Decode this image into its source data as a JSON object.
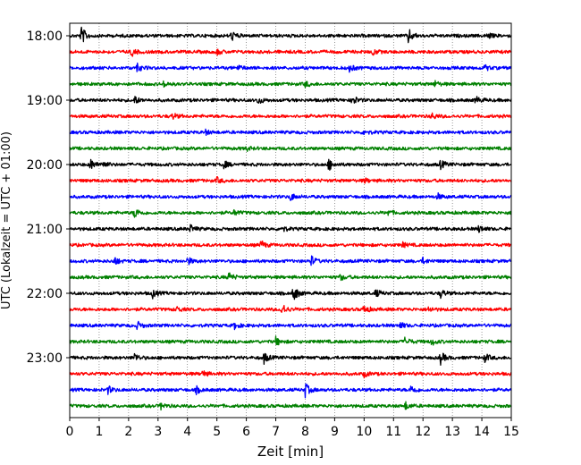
{
  "chart_data": {
    "type": "line",
    "xlabel": "Zeit  [min]",
    "ylabel": "UTC (Lokalzeit = UTC + 01:00)",
    "xlim": [
      0,
      15
    ],
    "x_ticks": [
      0,
      1,
      2,
      3,
      4,
      5,
      6,
      7,
      8,
      9,
      10,
      11,
      12,
      13,
      14,
      15
    ],
    "x_tick_labels": [
      "0",
      "1",
      "2",
      "3",
      "4",
      "5",
      "6",
      "7",
      "8",
      "9",
      "10",
      "11",
      "12",
      "13",
      "14",
      "15"
    ],
    "y_ticks": [
      "18:00",
      "19:00",
      "20:00",
      "21:00",
      "22:00",
      "23:00"
    ],
    "grid": "vertical dotted",
    "trace_interval_min": 15,
    "colors": [
      "#000000",
      "#ff0000",
      "#0000ff",
      "#008000"
    ],
    "traces": [
      {
        "start": "18:00",
        "color": "#000000",
        "events": [
          [
            0.4,
            1.0
          ],
          [
            5.5,
            0.5
          ],
          [
            11.5,
            0.8
          ],
          [
            14.2,
            0.3
          ]
        ]
      },
      {
        "start": "18:15",
        "color": "#ff0000",
        "events": [
          [
            2.1,
            0.45
          ],
          [
            5.0,
            0.3
          ],
          [
            10.3,
            0.3
          ]
        ]
      },
      {
        "start": "18:30",
        "color": "#0000ff",
        "events": [
          [
            2.3,
            0.4
          ],
          [
            5.7,
            0.3
          ],
          [
            9.5,
            0.4
          ],
          [
            14.1,
            0.3
          ]
        ]
      },
      {
        "start": "18:45",
        "color": "#008000",
        "events": [
          [
            3.2,
            0.3
          ],
          [
            8.0,
            0.3
          ],
          [
            12.4,
            0.3
          ]
        ]
      },
      {
        "start": "19:00",
        "color": "#000000",
        "events": [
          [
            2.2,
            0.45
          ],
          [
            6.4,
            0.4
          ],
          [
            9.6,
            0.55
          ],
          [
            13.8,
            0.4
          ]
        ]
      },
      {
        "start": "19:15",
        "color": "#ff0000",
        "events": [
          [
            3.5,
            0.3
          ],
          [
            12.3,
            0.35
          ]
        ]
      },
      {
        "start": "19:30",
        "color": "#0000ff",
        "events": [
          [
            4.6,
            0.25
          ],
          [
            10.0,
            0.3
          ]
        ]
      },
      {
        "start": "19:45",
        "color": "#008000",
        "events": [
          [
            6.0,
            0.2
          ]
        ]
      },
      {
        "start": "20:00",
        "color": "#000000",
        "events": [
          [
            0.7,
            0.6
          ],
          [
            1.1,
            0.45
          ],
          [
            5.2,
            0.5
          ],
          [
            8.8,
            0.6
          ],
          [
            12.6,
            0.45
          ]
        ]
      },
      {
        "start": "20:15",
        "color": "#ff0000",
        "events": [
          [
            5.0,
            0.3
          ],
          [
            10.0,
            0.25
          ]
        ]
      },
      {
        "start": "20:30",
        "color": "#0000ff",
        "events": [
          [
            7.5,
            0.4
          ],
          [
            12.5,
            0.3
          ]
        ]
      },
      {
        "start": "20:45",
        "color": "#008000",
        "events": [
          [
            2.2,
            0.6
          ],
          [
            5.6,
            0.3
          ],
          [
            10.8,
            0.3
          ]
        ]
      },
      {
        "start": "21:00",
        "color": "#000000",
        "events": [
          [
            4.1,
            0.4
          ],
          [
            7.2,
            0.35
          ],
          [
            13.9,
            0.4
          ]
        ]
      },
      {
        "start": "21:15",
        "color": "#ff0000",
        "events": [
          [
            6.5,
            0.45
          ],
          [
            11.3,
            0.25
          ]
        ]
      },
      {
        "start": "21:30",
        "color": "#0000ff",
        "events": [
          [
            1.5,
            0.5
          ],
          [
            4.0,
            0.4
          ],
          [
            8.2,
            0.55
          ],
          [
            12.0,
            0.3
          ]
        ]
      },
      {
        "start": "21:45",
        "color": "#008000",
        "events": [
          [
            5.4,
            0.5
          ],
          [
            9.2,
            0.3
          ]
        ]
      },
      {
        "start": "22:00",
        "color": "#000000",
        "events": [
          [
            2.8,
            0.5
          ],
          [
            7.6,
            0.9
          ],
          [
            10.4,
            0.4
          ],
          [
            12.6,
            0.45
          ]
        ]
      },
      {
        "start": "22:15",
        "color": "#ff0000",
        "events": [
          [
            3.6,
            0.35
          ],
          [
            7.2,
            0.75
          ],
          [
            10.0,
            0.5
          ],
          [
            12.2,
            0.3
          ]
        ]
      },
      {
        "start": "22:30",
        "color": "#0000ff",
        "events": [
          [
            2.3,
            0.4
          ],
          [
            5.6,
            0.35
          ],
          [
            11.2,
            0.4
          ]
        ]
      },
      {
        "start": "22:45",
        "color": "#008000",
        "events": [
          [
            7.0,
            0.45
          ],
          [
            11.4,
            0.5
          ],
          [
            12.3,
            0.35
          ]
        ]
      },
      {
        "start": "23:00",
        "color": "#000000",
        "events": [
          [
            2.2,
            0.45
          ],
          [
            6.6,
            0.6
          ],
          [
            12.6,
            0.65
          ],
          [
            14.1,
            0.45
          ]
        ]
      },
      {
        "start": "23:15",
        "color": "#ff0000",
        "events": [
          [
            4.5,
            0.35
          ],
          [
            10.0,
            0.3
          ]
        ]
      },
      {
        "start": "23:30",
        "color": "#0000ff",
        "events": [
          [
            1.3,
            0.4
          ],
          [
            4.3,
            0.35
          ],
          [
            8.0,
            0.75
          ],
          [
            11.6,
            0.5
          ]
        ]
      },
      {
        "start": "23:45",
        "color": "#008000",
        "events": [
          [
            3.1,
            0.35
          ],
          [
            11.4,
            0.4
          ]
        ]
      }
    ]
  }
}
